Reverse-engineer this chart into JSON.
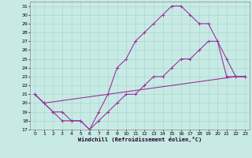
{
  "xlabel": "Windchill (Refroidissement éolien,°C)",
  "bg_color": "#c8eae5",
  "grid_color": "#a8d8d2",
  "line_color": "#993399",
  "xlim": [
    -0.5,
    23.5
  ],
  "ylim": [
    17,
    31.5
  ],
  "xticks": [
    0,
    1,
    2,
    3,
    4,
    5,
    6,
    7,
    8,
    9,
    10,
    11,
    12,
    13,
    14,
    15,
    16,
    17,
    18,
    19,
    20,
    21,
    22,
    23
  ],
  "yticks": [
    17,
    18,
    19,
    20,
    21,
    22,
    23,
    24,
    25,
    26,
    27,
    28,
    29,
    30,
    31
  ],
  "line1_x": [
    0,
    1,
    2,
    3,
    4,
    5,
    6,
    7,
    8,
    9,
    10,
    11,
    12,
    13,
    14,
    15,
    16,
    17,
    18,
    19,
    20,
    21,
    22,
    23
  ],
  "line1_y": [
    21,
    20,
    19,
    19,
    18,
    18,
    17,
    19,
    21,
    24,
    25,
    27,
    28,
    29,
    30,
    31,
    31,
    30,
    29,
    29,
    27,
    23,
    23,
    23
  ],
  "line2_x": [
    0,
    1,
    2,
    3,
    4,
    5,
    6,
    7,
    8,
    9,
    10,
    11,
    12,
    13,
    14,
    15,
    16,
    17,
    18,
    19,
    20,
    21,
    22,
    23
  ],
  "line2_y": [
    21,
    20,
    19,
    18,
    18,
    18,
    17,
    18,
    19,
    20,
    21,
    21,
    22,
    23,
    23,
    24,
    25,
    25,
    26,
    27,
    27,
    25,
    23,
    23
  ],
  "line3_x": [
    0,
    1,
    22,
    23
  ],
  "line3_y": [
    21,
    20,
    23,
    23
  ]
}
